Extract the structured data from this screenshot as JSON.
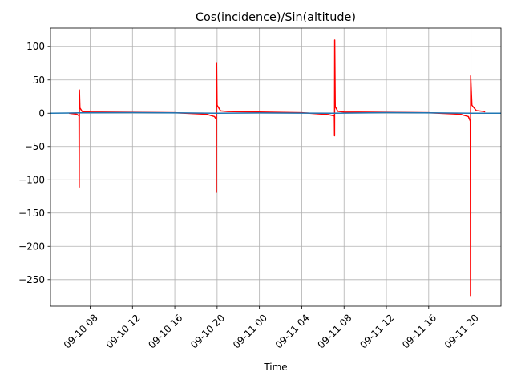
{
  "chart_data": {
    "type": "line",
    "title": "Cos(incidence)/Sin(altitude)",
    "xlabel": "Time",
    "ylabel": "",
    "xlim": [
      "2023-09-10 04:15",
      "2023-09-11 22:50"
    ],
    "ylim": [
      -290,
      128
    ],
    "grid": true,
    "legend": "none",
    "x_ticks": [
      {
        "t": "2023-09-10 08:00",
        "label": "09-10 08"
      },
      {
        "t": "2023-09-10 12:00",
        "label": "09-10 12"
      },
      {
        "t": "2023-09-10 16:00",
        "label": "09-10 16"
      },
      {
        "t": "2023-09-10 20:00",
        "label": "09-10 20"
      },
      {
        "t": "2023-09-11 00:00",
        "label": "09-11 00"
      },
      {
        "t": "2023-09-11 04:00",
        "label": "09-11 04"
      },
      {
        "t": "2023-09-11 08:00",
        "label": "09-11 08"
      },
      {
        "t": "2023-09-11 12:00",
        "label": "09-11 12"
      },
      {
        "t": "2023-09-11 16:00",
        "label": "09-11 16"
      },
      {
        "t": "2023-09-11 20:00",
        "label": "09-11 20"
      }
    ],
    "y_ticks": [
      {
        "v": 100,
        "label": "100"
      },
      {
        "v": 50,
        "label": "50"
      },
      {
        "v": 0,
        "label": "0"
      },
      {
        "v": -50,
        "label": "−50"
      },
      {
        "v": -100,
        "label": "−100"
      },
      {
        "v": -150,
        "label": "−150"
      },
      {
        "v": -200,
        "label": "−200"
      },
      {
        "v": -250,
        "label": "−250"
      }
    ],
    "series": [
      {
        "color": "#ff0000",
        "points": [
          [
            "2023-09-10 06:00",
            0
          ],
          [
            "2023-09-10 06:45",
            -1.5
          ],
          [
            "2023-09-10 06:57",
            -4
          ],
          [
            "2023-09-10 06:58",
            -111
          ],
          [
            "2023-09-10 06:59",
            35
          ],
          [
            "2023-09-10 07:02",
            8
          ],
          [
            "2023-09-10 07:15",
            2.5
          ],
          [
            "2023-09-10 08:00",
            1.8
          ],
          [
            "2023-09-10 12:00",
            1.3
          ],
          [
            "2023-09-10 16:00",
            0.8
          ],
          [
            "2023-09-10 19:00",
            -1.5
          ],
          [
            "2023-09-10 19:45",
            -5
          ],
          [
            "2023-09-10 19:55",
            -9
          ],
          [
            "2023-09-10 19:56",
            -119
          ],
          [
            "2023-09-10 19:57",
            76
          ],
          [
            "2023-09-10 20:00",
            12
          ],
          [
            "2023-09-10 20:20",
            3.5
          ],
          [
            "2023-09-10 21:00",
            2.5
          ],
          [
            "2023-09-11 00:00",
            1.8
          ],
          [
            "2023-09-11 04:00",
            0.8
          ],
          [
            "2023-09-11 06:30",
            -2
          ],
          [
            "2023-09-11 07:05",
            -4
          ],
          [
            "2023-09-11 07:06",
            -34
          ],
          [
            "2023-09-11 07:07",
            110
          ],
          [
            "2023-09-11 07:10",
            10
          ],
          [
            "2023-09-11 07:25",
            2.8
          ],
          [
            "2023-09-11 08:00",
            1.8
          ],
          [
            "2023-09-11 12:00",
            1.3
          ],
          [
            "2023-09-11 16:00",
            0.8
          ],
          [
            "2023-09-11 19:00",
            -1.5
          ],
          [
            "2023-09-11 19:45",
            -5
          ],
          [
            "2023-09-11 19:56",
            -12
          ],
          [
            "2023-09-11 19:57",
            -274
          ],
          [
            "2023-09-11 19:58",
            56
          ],
          [
            "2023-09-11 20:05",
            12
          ],
          [
            "2023-09-11 20:30",
            4
          ],
          [
            "2023-09-11 21:15",
            2.5
          ],
          [
            "2023-09-11 21:20",
            2
          ]
        ]
      },
      {
        "color": "#1f77b4",
        "points": [
          [
            "2023-09-10 04:15",
            0
          ],
          [
            "2023-09-10 06:00",
            0.3
          ],
          [
            "2023-09-10 07:00",
            0.6
          ],
          [
            "2023-09-10 12:00",
            0.9
          ],
          [
            "2023-09-10 17:00",
            0.5
          ],
          [
            "2023-09-10 20:00",
            0
          ],
          [
            "2023-09-11 00:00",
            0.4
          ],
          [
            "2023-09-11 04:00",
            0.2
          ],
          [
            "2023-09-11 07:00",
            0
          ],
          [
            "2023-09-11 12:00",
            0.9
          ],
          [
            "2023-09-11 17:00",
            0.5
          ],
          [
            "2023-09-11 20:00",
            0
          ],
          [
            "2023-09-11 22:50",
            0
          ]
        ]
      }
    ]
  }
}
